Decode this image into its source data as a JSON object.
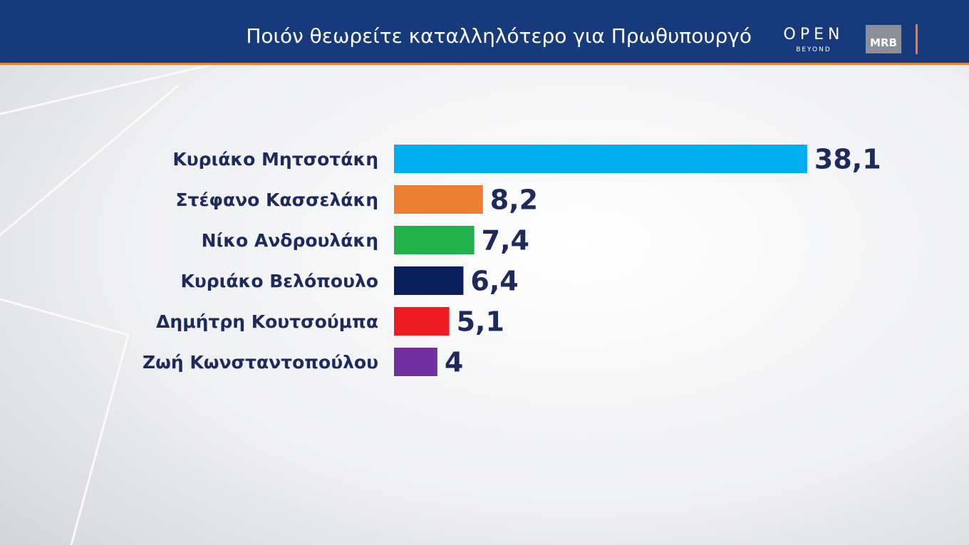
{
  "header": {
    "logo": "OPEN",
    "logo_sub": "BEYOND",
    "source": "MRB"
  },
  "chart_data": {
    "type": "bar",
    "orientation": "horizontal",
    "title": "Ποιόν θεωρείτε καταλληλότερο για Πρωθυπουργό",
    "categories": [
      "Κυριάκο Μητσοτάκη",
      "Στέφανο Κασσελάκη",
      "Νίκο Ανδρουλάκη",
      "Κυριάκο Βελόπουλο",
      "Δημήτρη Κουτσούμπα",
      "Ζωή Κωνσταντοπούλου"
    ],
    "values": [
      38.1,
      8.2,
      7.4,
      6.4,
      5.1,
      4
    ],
    "value_labels": [
      "38,1",
      "8,2",
      "7,4",
      "6,4",
      "5,1",
      "4"
    ],
    "colors": [
      "#00aeef",
      "#ed7d31",
      "#22b04b",
      "#0b1f5c",
      "#ee1c25",
      "#7030a0"
    ]
  }
}
